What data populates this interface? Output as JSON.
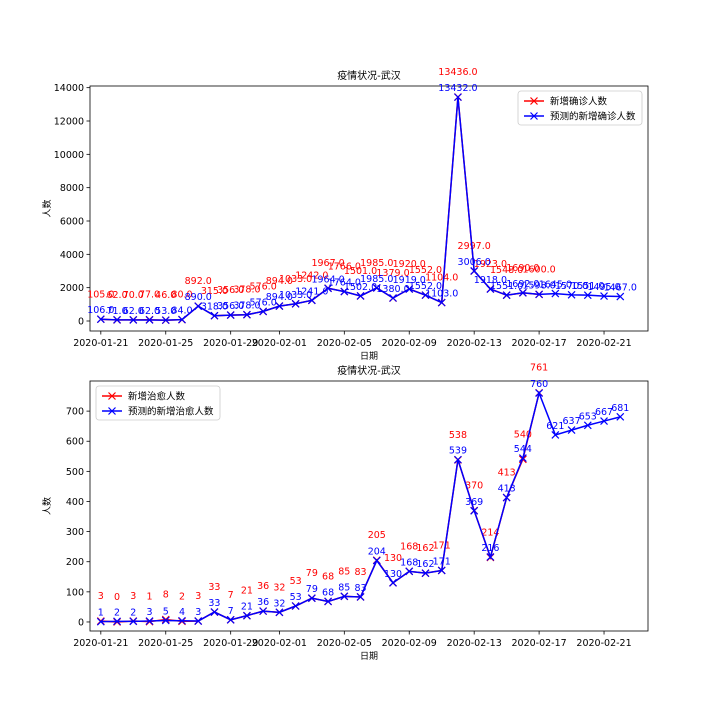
{
  "chart_data": [
    {
      "type": "line",
      "title": "疫情状况-武汉",
      "xlabel": "日期",
      "ylabel": "人数",
      "ylim": [
        -600,
        14100
      ],
      "yticks": [
        0,
        2000,
        4000,
        6000,
        8000,
        10000,
        12000,
        14000
      ],
      "xticks": [
        "2020-01-21",
        "2020-01-25",
        "2020-01-29",
        "2020-02-01",
        "2020-02-05",
        "2020-02-09",
        "2020-02-13",
        "2020-02-17",
        "2020-02-21"
      ],
      "legend": "top-right",
      "series": [
        {
          "name": "新增确诊人数",
          "color": "#ff0000",
          "x": [
            "2020-01-21",
            "2020-01-22",
            "2020-01-23",
            "2020-01-24",
            "2020-01-25",
            "2020-01-26",
            "2020-01-27",
            "2020-01-28",
            "2020-01-29",
            "2020-01-30",
            "2020-01-31",
            "2020-02-01",
            "2020-02-02",
            "2020-02-03",
            "2020-02-04",
            "2020-02-05",
            "2020-02-06",
            "2020-02-07",
            "2020-02-08",
            "2020-02-09",
            "2020-02-10",
            "2020-02-11",
            "2020-02-12",
            "2020-02-13",
            "2020-02-14",
            "2020-02-15",
            "2020-02-16",
            "2020-02-17"
          ],
          "values": [
            105.0,
            62.0,
            70.0,
            77.0,
            46.0,
            80.0,
            892.0,
            315.0,
            356.0,
            378.0,
            576.0,
            894.0,
            1033.0,
            1242.0,
            1967.0,
            1766.0,
            1501.0,
            1985.0,
            1379.0,
            1920.0,
            1552.0,
            1104.0,
            13436.0,
            2997.0,
            1923.0,
            1548.0,
            1690.0,
            1600.0
          ],
          "labels": [
            "105.0",
            "62.0",
            "70.0",
            "77.0",
            "46.0",
            "80.0",
            "892.0",
            "315.0",
            "356.0",
            "378.0",
            "576.0",
            "894.0",
            "1033.0",
            "1242.0",
            "1967.0",
            "1766.0",
            "1501.0",
            "1985.0",
            "1379.0",
            "1920.0",
            "1552.0",
            "1104.0",
            "13436.0",
            "2997.0",
            "1923.0",
            "1548.0",
            "1690.0",
            "1600.0"
          ]
        },
        {
          "name": "预测的新增确诊人数",
          "color": "#0000ff",
          "x": [
            "2020-01-21",
            "2020-01-22",
            "2020-01-23",
            "2020-01-24",
            "2020-01-25",
            "2020-01-26",
            "2020-01-27",
            "2020-01-28",
            "2020-01-29",
            "2020-01-30",
            "2020-01-31",
            "2020-02-01",
            "2020-02-02",
            "2020-02-03",
            "2020-02-04",
            "2020-02-05",
            "2020-02-06",
            "2020-02-07",
            "2020-02-08",
            "2020-02-09",
            "2020-02-10",
            "2020-02-11",
            "2020-02-12",
            "2020-02-13",
            "2020-02-14",
            "2020-02-15",
            "2020-02-16",
            "2020-02-17",
            "2020-02-18",
            "2020-02-19",
            "2020-02-20",
            "2020-02-21",
            "2020-02-22"
          ],
          "values": [
            106.0,
            71.0,
            62.0,
            62.0,
            53.0,
            84.0,
            890.0,
            318.0,
            356.0,
            378.0,
            576.0,
            894.0,
            1033.0,
            1241.0,
            1964.0,
            1764.0,
            1502.0,
            1985.0,
            1380.0,
            1919.0,
            1552.0,
            1103.0,
            13432.0,
            3006.0,
            1918.0,
            1551.0,
            1692.0,
            1598.0,
            1645.0,
            1570.0,
            1551.0,
            1495.0,
            1467.0
          ],
          "labels": [
            "106.0",
            "71.0",
            "62.0",
            "62.0",
            "53.0",
            "84.0",
            "890.0",
            "318.0",
            "356.0",
            "378.0",
            "576.0",
            "894.0",
            "1033.0",
            "1241.0",
            "1964.0",
            "1764.0",
            "1502.0",
            "1985.0",
            "1380.0",
            "1919.0",
            "1552.0",
            "1103.0",
            "13432.0",
            "3006.0",
            "1918.0",
            "1551.0",
            "1692.0",
            "1598.0",
            "1645.0",
            "1570.0",
            "1551.0",
            "1495.0",
            "1467.0"
          ]
        }
      ]
    },
    {
      "type": "line",
      "title": "疫情状况-武汉",
      "xlabel": "日期",
      "ylabel": "人数",
      "ylim": [
        -30,
        800
      ],
      "yticks": [
        0,
        100,
        200,
        300,
        400,
        500,
        600,
        700
      ],
      "xticks": [
        "2020-01-21",
        "2020-01-25",
        "2020-01-29",
        "2020-02-01",
        "2020-02-05",
        "2020-02-09",
        "2020-02-13",
        "2020-02-17",
        "2020-02-21"
      ],
      "legend": "top-left",
      "series": [
        {
          "name": "新增治愈人数",
          "color": "#ff0000",
          "x": [
            "2020-01-21",
            "2020-01-22",
            "2020-01-23",
            "2020-01-24",
            "2020-01-25",
            "2020-01-26",
            "2020-01-27",
            "2020-01-28",
            "2020-01-29",
            "2020-01-30",
            "2020-01-31",
            "2020-02-01",
            "2020-02-02",
            "2020-02-03",
            "2020-02-04",
            "2020-02-05",
            "2020-02-06",
            "2020-02-07",
            "2020-02-08",
            "2020-02-09",
            "2020-02-10",
            "2020-02-11",
            "2020-02-12",
            "2020-02-13",
            "2020-02-14",
            "2020-02-15",
            "2020-02-16",
            "2020-02-17"
          ],
          "values": [
            3,
            0,
            3,
            1,
            8,
            2,
            3,
            33,
            7,
            21,
            36,
            32,
            53,
            79,
            68,
            85,
            83,
            205,
            130,
            168,
            162,
            171,
            538,
            370,
            214,
            413,
            540,
            761
          ],
          "labels": [
            "3",
            "0",
            "3",
            "1",
            "8",
            "2",
            "3",
            "33",
            "7",
            "21",
            "36",
            "32",
            "53",
            "79",
            "68",
            "85",
            "83",
            "205",
            "130",
            "168",
            "162",
            "171",
            "538",
            "370",
            "214",
            "413",
            "540",
            "761"
          ]
        },
        {
          "name": "预测的新增治愈人数",
          "color": "#0000ff",
          "x": [
            "2020-01-21",
            "2020-01-22",
            "2020-01-23",
            "2020-01-24",
            "2020-01-25",
            "2020-01-26",
            "2020-01-27",
            "2020-01-28",
            "2020-01-29",
            "2020-01-30",
            "2020-01-31",
            "2020-02-01",
            "2020-02-02",
            "2020-02-03",
            "2020-02-04",
            "2020-02-05",
            "2020-02-06",
            "2020-02-07",
            "2020-02-08",
            "2020-02-09",
            "2020-02-10",
            "2020-02-11",
            "2020-02-12",
            "2020-02-13",
            "2020-02-14",
            "2020-02-15",
            "2020-02-16",
            "2020-02-17",
            "2020-02-18",
            "2020-02-19",
            "2020-02-20",
            "2020-02-21",
            "2020-02-22"
          ],
          "values": [
            1,
            2,
            2,
            3,
            5,
            4,
            3,
            33,
            7,
            21,
            36,
            32,
            53,
            79,
            68,
            85,
            83,
            204,
            130,
            168,
            162,
            171,
            539,
            369,
            216,
            413,
            544,
            760,
            621,
            637,
            653,
            667,
            681
          ],
          "labels": [
            "1",
            "2",
            "2",
            "3",
            "5",
            "4",
            "3",
            "33",
            "7",
            "21",
            "36",
            "32",
            "53",
            "79",
            "68",
            "85",
            "83",
            "204",
            "130",
            "168",
            "162",
            "171",
            "539",
            "369",
            "216",
            "413",
            "544",
            "760",
            "621",
            "637",
            "653",
            "667",
            "681"
          ]
        }
      ]
    }
  ]
}
